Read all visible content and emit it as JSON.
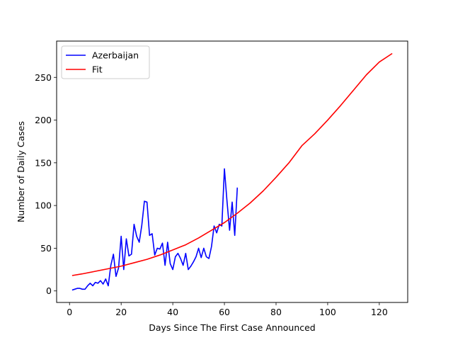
{
  "chart_data": {
    "type": "line",
    "title": "",
    "xlabel": "Days Since The First Case Announced",
    "ylabel": "Number of Daily Cases",
    "xlim": [
      -5,
      131
    ],
    "ylim": [
      -13.5,
      292.5
    ],
    "xticks": [
      0,
      20,
      40,
      60,
      80,
      100,
      120
    ],
    "yticks": [
      0,
      50,
      100,
      150,
      200,
      250
    ],
    "grid": false,
    "legend": {
      "position": "top-left"
    },
    "series": [
      {
        "name": "Azerbaijan",
        "color": "#0000ff",
        "x": [
          1,
          2,
          3,
          4,
          5,
          6,
          7,
          8,
          9,
          10,
          11,
          12,
          13,
          14,
          15,
          16,
          17,
          18,
          19,
          20,
          21,
          22,
          23,
          24,
          25,
          26,
          27,
          28,
          29,
          30,
          31,
          32,
          33,
          34,
          35,
          36,
          37,
          38,
          39,
          40,
          41,
          42,
          43,
          44,
          45,
          46,
          47,
          48,
          49,
          50,
          51,
          52,
          53,
          54,
          55,
          56,
          57,
          58,
          59,
          60,
          61,
          62,
          63,
          64,
          65
        ],
        "y": [
          1,
          2,
          3,
          3,
          2,
          2,
          6,
          9,
          6,
          10,
          9,
          12,
          8,
          14,
          6,
          30,
          43,
          17,
          27,
          64,
          25,
          61,
          41,
          43,
          78,
          64,
          57,
          77,
          105,
          104,
          65,
          67,
          42,
          50,
          49,
          56,
          30,
          57,
          32,
          25,
          40,
          44,
          38,
          30,
          44,
          25,
          29,
          34,
          40,
          50,
          39,
          50,
          40,
          38,
          52,
          76,
          68,
          78,
          76,
          143,
          105,
          71,
          104,
          65,
          121
        ]
      },
      {
        "name": "Fit",
        "color": "#ff0000",
        "x": [
          1,
          5,
          10,
          15,
          20,
          25,
          30,
          35,
          40,
          45,
          50,
          55,
          60,
          65,
          70,
          75,
          80,
          85,
          90,
          95,
          100,
          105,
          110,
          115,
          120,
          125
        ],
        "y": [
          18,
          20,
          23,
          26,
          29,
          33,
          37,
          42,
          48,
          54,
          62,
          71,
          80,
          91,
          103,
          117,
          133,
          150,
          170,
          184,
          200,
          217,
          235,
          253,
          268,
          278
        ]
      }
    ]
  }
}
